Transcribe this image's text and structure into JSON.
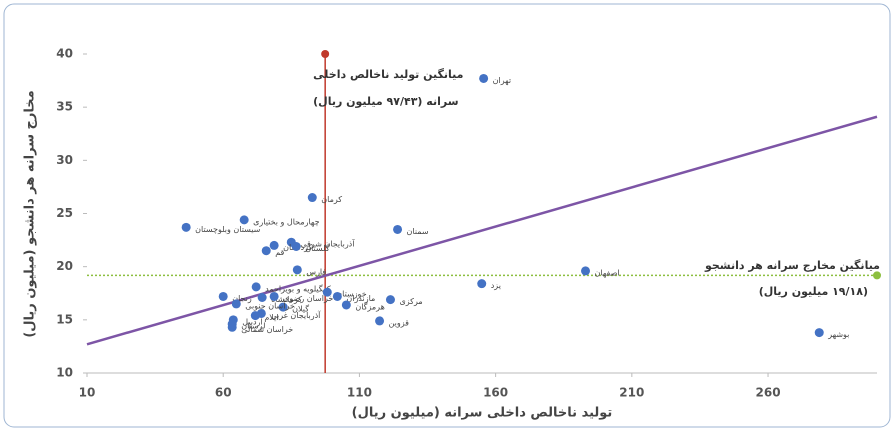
{
  "chart_data": {
    "type": "scatter",
    "x_label": "تولید ناخالص داخلی سرانه  (میلیون ریال)",
    "y_label": "مخارج سرانه هر دانشجو (میلیون ریال)",
    "color": "#4472c4",
    "point_labels": [
      "تهران",
      "کرمان",
      "سمنان",
      "چهارمحال و بختیاری",
      "سیستان وبلوچستان",
      "آذربایجان شرقی",
      "کردستان",
      "قم",
      "گلستان",
      "فارس",
      "اصفهان",
      "یزد",
      "کهگیلویه و بویراحمد",
      "خوزستان",
      "مازندران",
      "مرکزی",
      "هرمزگان",
      "قزوین",
      "بوشهر",
      "زنجان",
      "کرمانشاه",
      "خراسان رضوی",
      "گیلان",
      "خراسان جنوبی",
      "آذربایجان غربی",
      "ایلام",
      "اردبیل",
      "لرستان",
      "خراسان شمالی"
    ],
    "x": [
      155.6,
      92.7,
      124,
      67.7,
      46.4,
      85,
      78.7,
      75.8,
      86.8,
      87.2,
      193,
      154.9,
      72.1,
      98.2,
      101.9,
      121.4,
      105.2,
      117.4,
      278.8,
      60,
      74.3,
      78.7,
      82,
      64.8,
      74,
      71.8,
      63.7,
      63.3,
      63.3
    ],
    "values": [
      37.7,
      26.5,
      23.5,
      24.4,
      23.7,
      22.3,
      22.0,
      21.5,
      21.9,
      19.7,
      19.6,
      18.4,
      18.1,
      17.6,
      17.2,
      16.9,
      16.4,
      14.9,
      13.8,
      17.2,
      17.1,
      17.2,
      16.2,
      16.5,
      15.6,
      15.4,
      15.0,
      14.6,
      14.3
    ],
    "mean_x": 97.43,
    "mean_y": 19.18,
    "mean_x_color": "#c0392b",
    "mean_y_color": "#8cbf3f",
    "mean_x_label": [
      "میانگین تولید ناخالص داخلی",
      "سرانه (۹۷/۴۳ میلیون ریال)"
    ],
    "mean_y_label": [
      "میانگین مخارج سرانه هر دانشجو",
      "(۱۹/۱۸ میلیون ریال)"
    ],
    "trendline": {
      "x": [
        10,
        300
      ],
      "y": [
        12.7,
        34.1
      ],
      "color": "#7d55a6"
    },
    "xlim": [
      10,
      300
    ],
    "ylim": [
      10,
      40
    ],
    "xticks": [
      10,
      60,
      110,
      160,
      210,
      260
    ],
    "yticks": [
      10,
      15,
      20,
      25,
      30,
      35,
      40
    ]
  }
}
